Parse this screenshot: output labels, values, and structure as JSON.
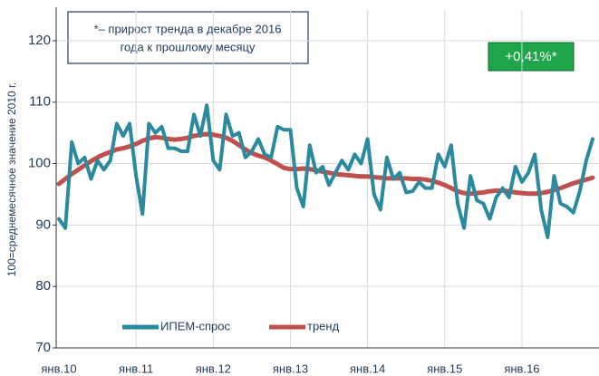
{
  "chart_data": {
    "type": "line",
    "y_label": "100=среднемесячное значение 2010 г.",
    "note_lines": [
      "*– прирост тренда в декабре 2016",
      "года к прошлому месяцу"
    ],
    "badge": "+0,41%*",
    "categories": [
      "янв.10",
      null,
      null,
      null,
      null,
      null,
      null,
      null,
      null,
      null,
      null,
      null,
      "янв.11",
      null,
      null,
      null,
      null,
      null,
      null,
      null,
      null,
      null,
      null,
      null,
      "янв.12",
      null,
      null,
      null,
      null,
      null,
      null,
      null,
      null,
      null,
      null,
      null,
      "янв.13",
      null,
      null,
      null,
      null,
      null,
      null,
      null,
      null,
      null,
      null,
      null,
      "янв.14",
      null,
      null,
      null,
      null,
      null,
      null,
      null,
      null,
      null,
      null,
      null,
      "янв.15",
      null,
      null,
      null,
      null,
      null,
      null,
      null,
      null,
      null,
      null,
      null,
      "янв.16",
      null,
      null,
      null,
      null,
      null,
      null,
      null,
      null,
      null,
      null,
      null
    ],
    "series": [
      {
        "name": "ИПЕМ-спрос",
        "color": "#2b8a9e",
        "values": [
          91,
          89.5,
          103.5,
          100,
          101,
          97.5,
          100.5,
          99,
          100.5,
          106.5,
          104.5,
          106.5,
          98,
          91.8,
          106.5,
          105,
          106,
          102.5,
          102.5,
          102,
          102,
          108,
          104.5,
          109.5,
          100.5,
          99,
          108,
          104.5,
          105,
          101,
          102,
          104,
          101.5,
          101,
          106,
          105.5,
          105.5,
          96,
          93,
          103,
          98.5,
          99.5,
          96.5,
          98.5,
          100.5,
          99,
          101.5,
          100,
          104,
          95,
          92.5,
          101,
          97.5,
          98.5,
          95.3,
          95.5,
          97,
          96,
          96,
          101.5,
          99.5,
          103,
          93.5,
          89.5,
          98,
          94,
          93.5,
          91,
          94.5,
          96,
          94.5,
          99.5,
          97,
          98.5,
          101.5,
          92.5,
          88,
          98,
          93.5,
          93,
          92,
          95.5,
          100.5,
          104
        ]
      },
      {
        "name": "тренд",
        "color": "#c0504d",
        "values": [
          96.7,
          97.5,
          98.3,
          99,
          99.7,
          100.4,
          101,
          101.5,
          101.9,
          102.3,
          102.5,
          102.8,
          103.2,
          103.7,
          104.1,
          104.3,
          104.2,
          104,
          103.9,
          104,
          104.2,
          104.5,
          104.7,
          104.8,
          104.7,
          104.5,
          104.2,
          103.7,
          103,
          102.3,
          101.7,
          101.3,
          101,
          100.5,
          99.9,
          99.3,
          99.1,
          99.1,
          99.2,
          99.1,
          98.9,
          98.7,
          98.5,
          98.3,
          98.2,
          98.1,
          98,
          97.9,
          97.9,
          97.8,
          97.7,
          97.6,
          97.6,
          97.6,
          97.6,
          97.5,
          97.5,
          97.4,
          97.2,
          96.9,
          96.5,
          96,
          95.5,
          95.2,
          95.1,
          95.2,
          95.3,
          95.5,
          95.6,
          95.6,
          95.5,
          95.3,
          95.2,
          95.1,
          95.1,
          95.2,
          95.4,
          95.7,
          96,
          96.4,
          96.8,
          97.1,
          97.4,
          97.7
        ]
      }
    ],
    "ylim": [
      70,
      125
    ],
    "yticks": [
      70,
      80,
      90,
      100,
      110,
      120
    ],
    "grid": true
  }
}
